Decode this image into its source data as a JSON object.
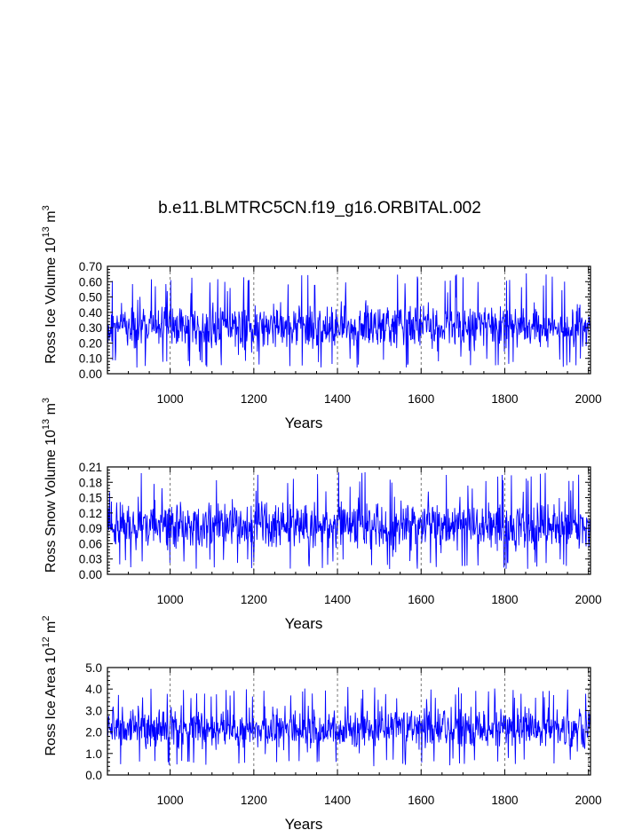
{
  "title": "b.e11.BLMTRC5CN.f19_g16.ORBITAL.002",
  "colors": {
    "series": "#0000ff",
    "axis": "#000000",
    "grid": "#555555",
    "background": "#ffffff"
  },
  "chart_data": [
    {
      "type": "line",
      "ylabel": {
        "prefix": "Ross Ice Volume 10",
        "exponent": "13",
        "middle": " m",
        "unit_exp": "3"
      },
      "xlabel": "Years",
      "xlim": [
        850,
        2005
      ],
      "ylim": [
        0,
        0.7
      ],
      "xticks": [
        1000,
        1200,
        1400,
        1600,
        1800,
        2000
      ],
      "yticks": [
        "0.00",
        "0.10",
        "0.20",
        "0.30",
        "0.40",
        "0.50",
        "0.60",
        "0.70"
      ],
      "yminor_step": 0.02,
      "xminor_step": 50,
      "grid": "vertical dashed at major x ticks",
      "series": [
        {
          "x_range": [
            850,
            2005
          ],
          "mean": 0.33,
          "typical_min": 0.1,
          "typical_max": 0.52,
          "observed_min": 0.04,
          "observed_max": 0.66
        }
      ]
    },
    {
      "type": "line",
      "ylabel": {
        "prefix": "Ross Snow Volume 10",
        "exponent": "13",
        "middle": " m",
        "unit_exp": "3"
      },
      "xlabel": "Years",
      "xlim": [
        850,
        2005
      ],
      "ylim": [
        0,
        0.21
      ],
      "xticks": [
        1000,
        1200,
        1400,
        1600,
        1800,
        2000
      ],
      "yticks": [
        "0.00",
        "0.03",
        "0.06",
        "0.09",
        "0.12",
        "0.15",
        "0.18",
        "0.21"
      ],
      "yminor_step": 0.006,
      "xminor_step": 50,
      "grid": "vertical dashed at major x ticks",
      "series": [
        {
          "x_range": [
            850,
            2005
          ],
          "mean": 0.095,
          "typical_min": 0.03,
          "typical_max": 0.16,
          "observed_min": 0.01,
          "observed_max": 0.2
        }
      ]
    },
    {
      "type": "line",
      "ylabel": {
        "prefix": "Ross Ice Area 10",
        "exponent": "12",
        "middle": " m",
        "unit_exp": "2"
      },
      "xlabel": "Years",
      "xlim": [
        850,
        2005
      ],
      "ylim": [
        0,
        5
      ],
      "xticks": [
        1000,
        1200,
        1400,
        1600,
        1800,
        2000
      ],
      "yticks": [
        "0.0",
        "1.0",
        "2.0",
        "3.0",
        "4.0",
        "5.0"
      ],
      "yminor_step": 0.2,
      "xminor_step": 50,
      "grid": "vertical dashed at major x ticks",
      "series": [
        {
          "x_range": [
            850,
            2005
          ],
          "mean": 2.2,
          "typical_min": 0.8,
          "typical_max": 3.5,
          "observed_min": 0.4,
          "observed_max": 4.1
        }
      ]
    }
  ]
}
